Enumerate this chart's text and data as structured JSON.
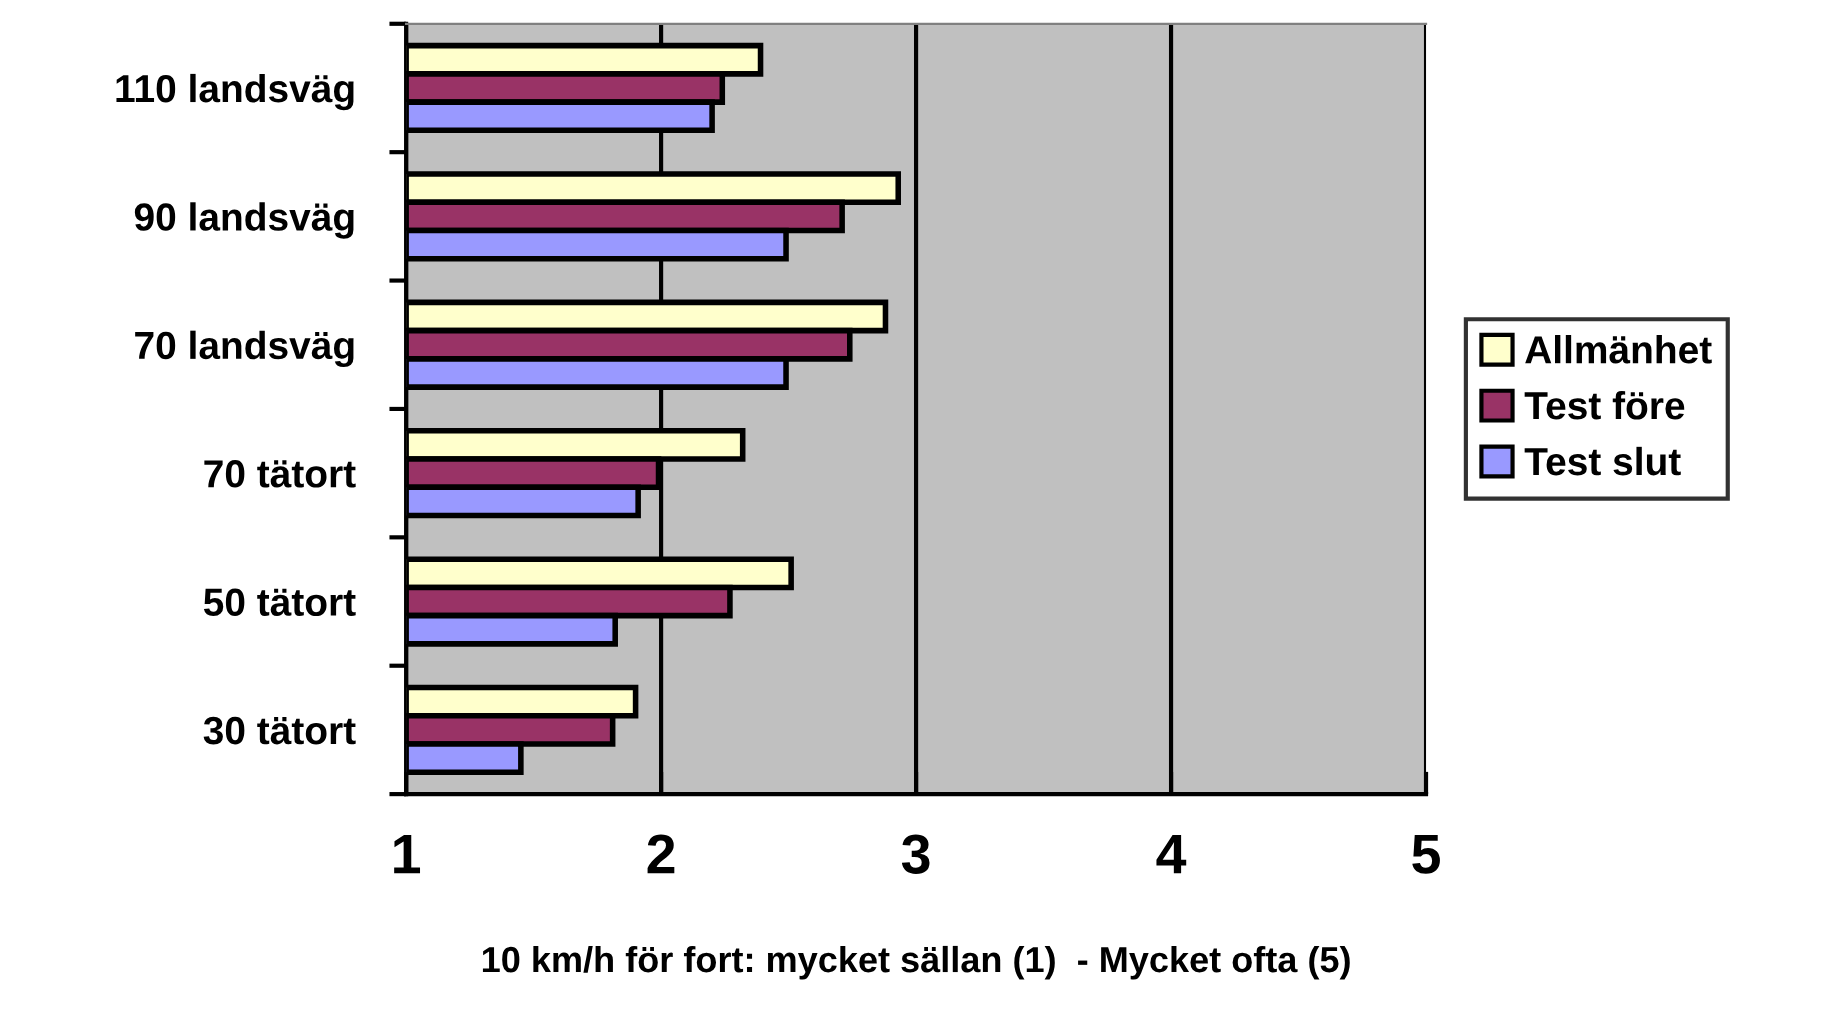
{
  "chart_data": {
    "type": "bar",
    "orientation": "horizontal",
    "xlabel": "10 km/h för fort: mycket sällan (1)  - Mycket ofta (5)",
    "categories": [
      "110 landsväg",
      "90 landsväg",
      "70 landsväg",
      "70 tätort",
      "50 tätort",
      "30 tätort"
    ],
    "series": [
      {
        "name": "Allmänhet",
        "color": "#ffffcc",
        "values": [
          2.39,
          2.93,
          2.88,
          2.32,
          2.51,
          1.9
        ]
      },
      {
        "name": "Test före",
        "color": "#993366",
        "values": [
          2.24,
          2.71,
          2.74,
          1.99,
          2.27,
          1.81
        ]
      },
      {
        "name": "Test slut",
        "color": "#9999ff",
        "values": [
          2.2,
          2.49,
          2.49,
          1.91,
          1.82,
          1.45
        ]
      }
    ],
    "xlim": [
      1,
      5
    ],
    "xticks": [
      1,
      2,
      3,
      4,
      5
    ],
    "grid": "x",
    "legend": "right"
  }
}
